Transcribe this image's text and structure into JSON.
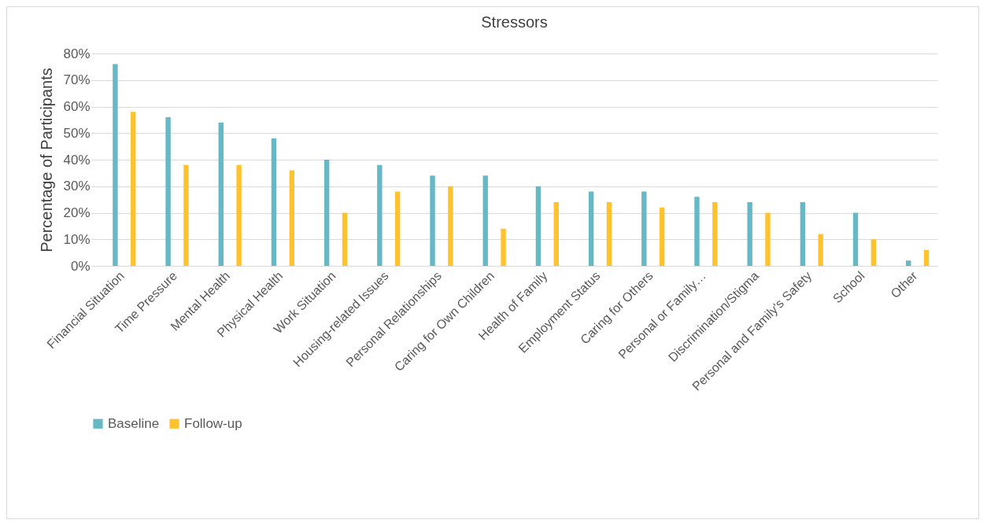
{
  "chart_data": {
    "type": "bar",
    "title": "Stressors",
    "ylabel": "Percentage of Participants",
    "categories": [
      "Financial Situation",
      "Time Pressure",
      "Mental Health",
      "Physical Health",
      "Work Situation",
      "Housing-related Issues",
      "Personal Relationships",
      "Caring for Own Children",
      "Health of Family",
      "Employment Status",
      "Caring for Others",
      "Personal or Family…",
      "Discrimination/Stigma",
      "Personal and Family's Safety",
      "School",
      "Other"
    ],
    "series": [
      {
        "name": "Baseline",
        "color": "#65b8c4",
        "values": [
          76,
          56,
          54,
          48,
          40,
          38,
          34,
          34,
          30,
          28,
          28,
          26,
          24,
          24,
          20,
          2
        ]
      },
      {
        "name": "Follow-up",
        "color": "#fdc22e",
        "values": [
          58,
          38,
          38,
          36,
          20,
          28,
          30,
          14,
          24,
          24,
          22,
          24,
          20,
          12,
          10,
          6
        ]
      }
    ],
    "ylim": [
      0,
      80
    ],
    "yticks": [
      {
        "value": 0,
        "label": "0%"
      },
      {
        "value": 10,
        "label": "10%"
      },
      {
        "value": 20,
        "label": "20%"
      },
      {
        "value": 30,
        "label": "30%"
      },
      {
        "value": 40,
        "label": "40%"
      },
      {
        "value": 50,
        "label": "50%"
      },
      {
        "value": 60,
        "label": "60%"
      },
      {
        "value": 70,
        "label": "70%"
      },
      {
        "value": 80,
        "label": "80%"
      }
    ],
    "grid": "y",
    "legend": "bottom"
  }
}
